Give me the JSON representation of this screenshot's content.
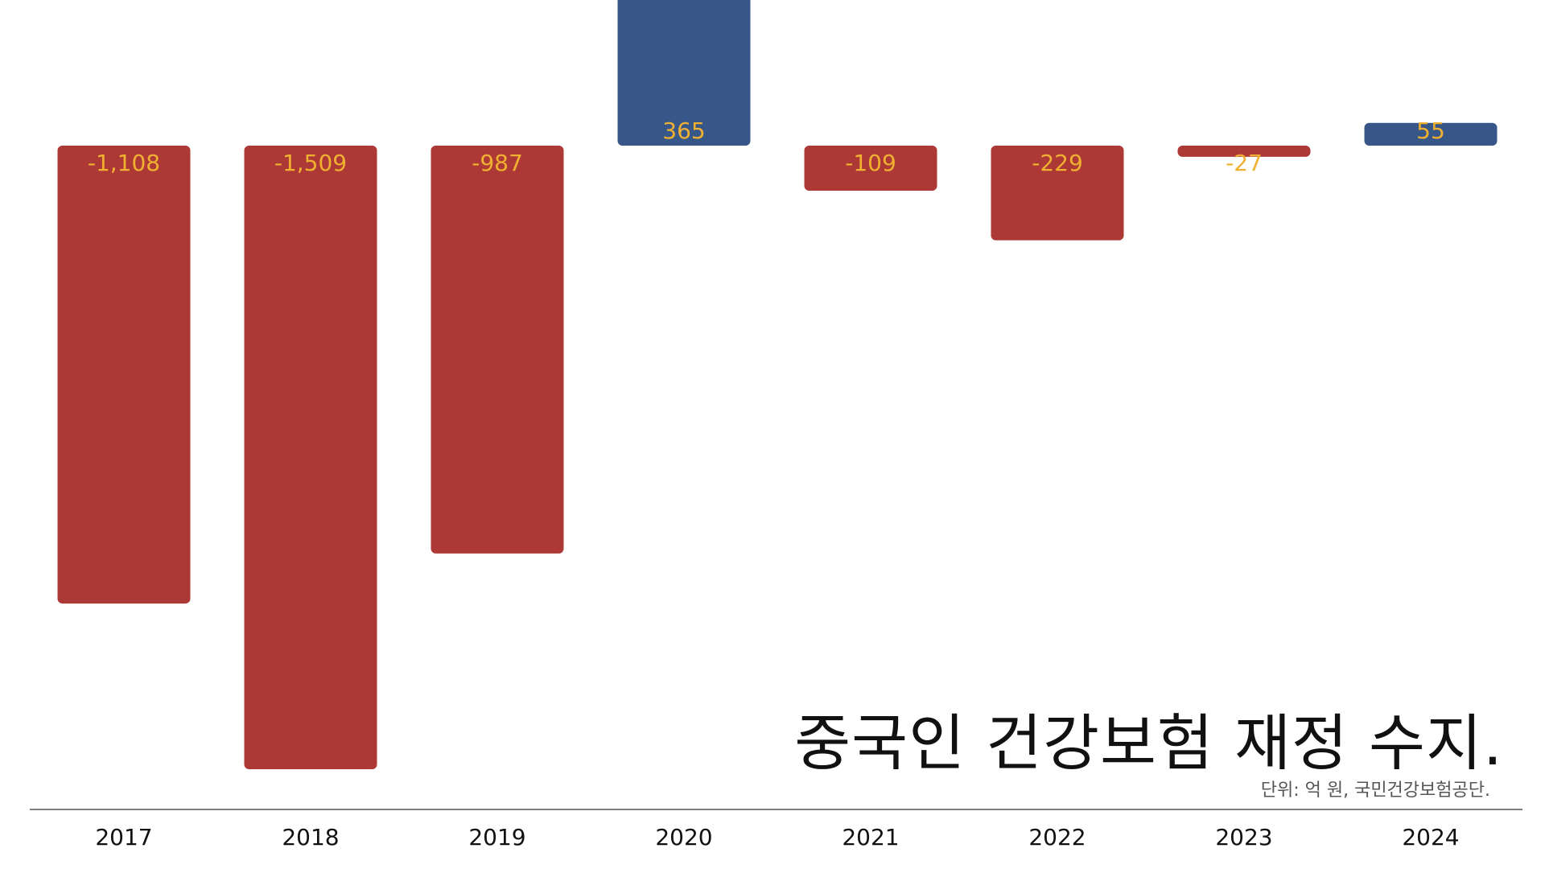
{
  "chart_data": {
    "type": "bar",
    "categories": [
      "2017",
      "2018",
      "2019",
      "2020",
      "2021",
      "2022",
      "2023",
      "2024"
    ],
    "values": [
      -1108,
      -1509,
      -987,
      365,
      -109,
      -229,
      -27,
      55
    ],
    "value_labels": [
      "-1,108",
      "-1,509",
      "-987",
      "365",
      "-109",
      "-229",
      "-27",
      "55"
    ],
    "title": "중국인 건강보험 재정 수지.",
    "note": "단위:  억 원, 국민건강보험공단.",
    "xlabel": "",
    "ylabel": "",
    "ylim": [
      -1550,
      400
    ],
    "grid": false,
    "legend": "none",
    "colors": {
      "positive": "#375788",
      "negative": "#ad3936",
      "value_label": "#f0b030",
      "axis": "#555555",
      "tick_label": "#111111"
    }
  }
}
